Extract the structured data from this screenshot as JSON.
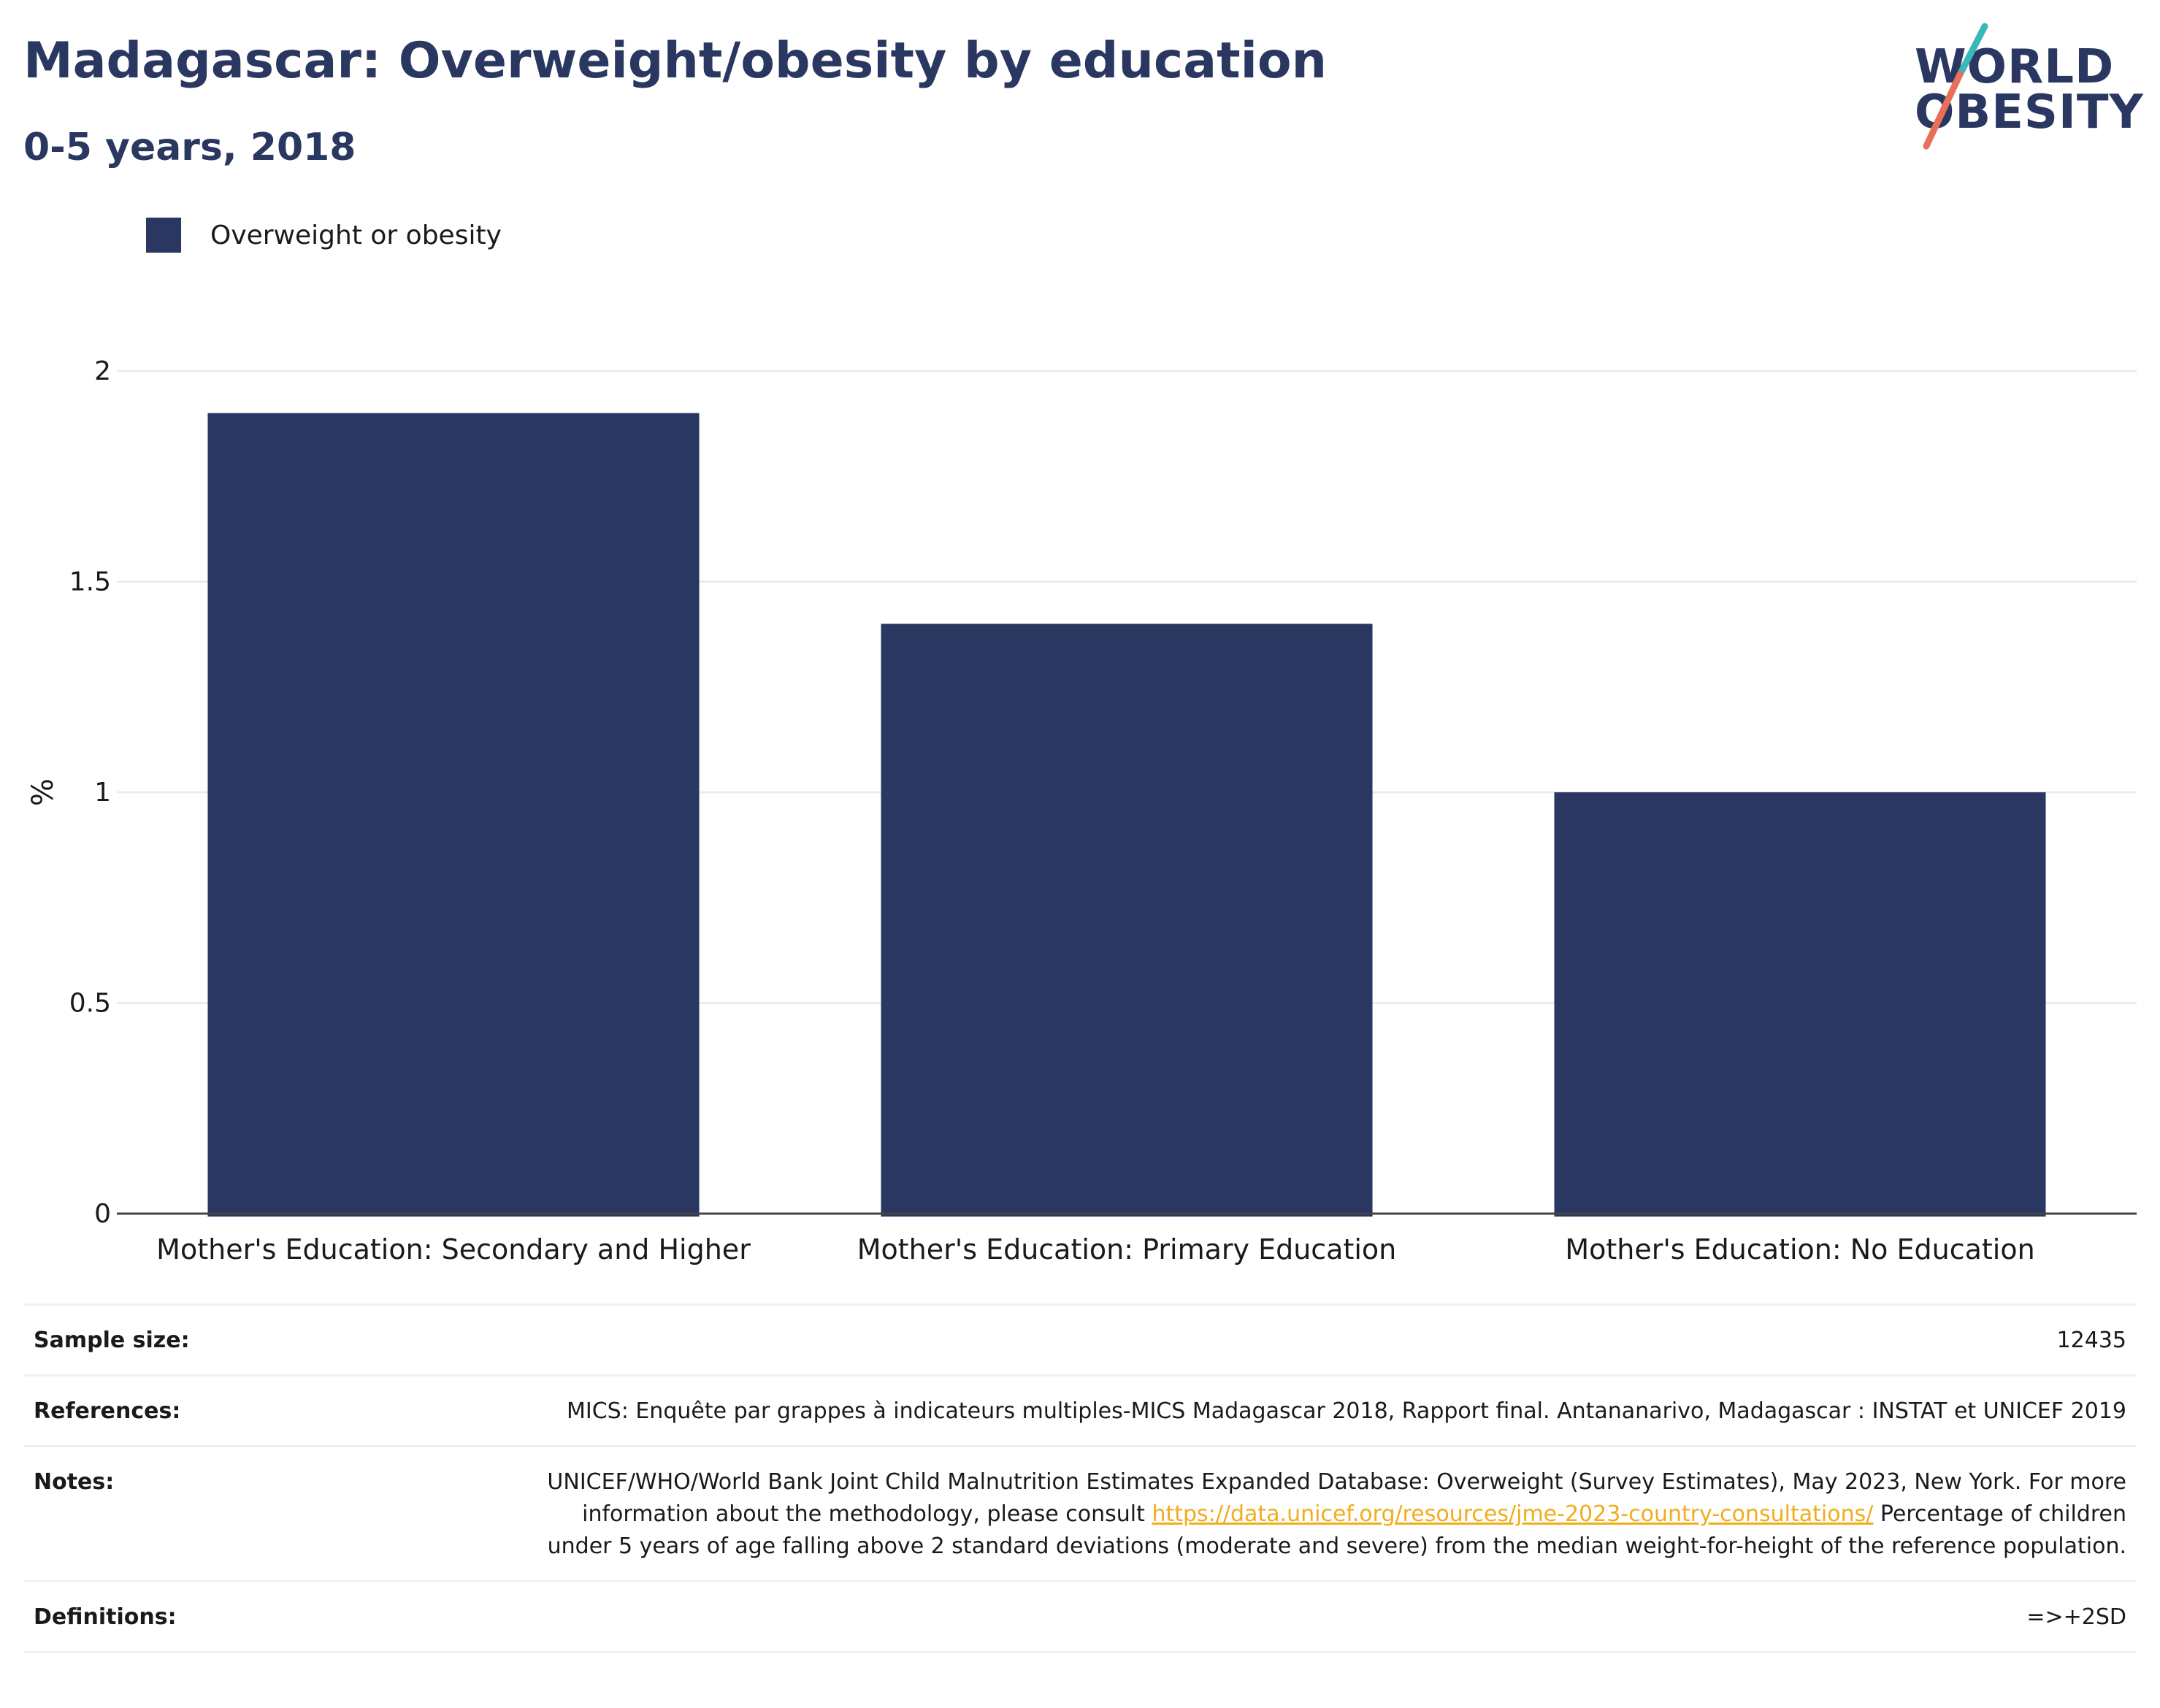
{
  "header": {
    "title": "Madagascar: Overweight/obesity by education",
    "subtitle": "0-5 years, 2018"
  },
  "logo": {
    "line1": "WORLD",
    "line2": "OBESITY",
    "colors": {
      "text": "#2a3761",
      "slash_top": "#3ab8b8",
      "slash_bottom": "#e8705a"
    }
  },
  "legend": {
    "label": "Overweight or obesity",
    "color": "#2a3761"
  },
  "chart_data": {
    "type": "bar",
    "categories": [
      "Mother's Education: Secondary and Higher",
      "Mother's Education: Primary Education",
      "Mother's Education: No Education"
    ],
    "series": [
      {
        "name": "Overweight or obesity",
        "values": [
          1.9,
          1.4,
          1.0
        ],
        "color": "#2a3761"
      }
    ],
    "ylabel": "%",
    "ylim": [
      0,
      2
    ],
    "yticks": [
      0,
      0.5,
      1,
      1.5,
      2
    ],
    "ytick_labels": [
      "0",
      "0.5",
      "1",
      "1.5",
      "2"
    ],
    "grid": true,
    "legend_position": "top-left"
  },
  "info": {
    "sample_size": {
      "label": "Sample size:",
      "value": "12435"
    },
    "references": {
      "label": "References:",
      "value": "MICS: Enquête par grappes à indicateurs multiples-MICS Madagascar 2018, Rapport final. Antananarivo, Madagascar : INSTAT et UNICEF 2019"
    },
    "notes": {
      "label": "Notes:",
      "text_before": "UNICEF/WHO/World Bank Joint Child Malnutrition Estimates Expanded Database: Overweight (Survey Estimates), May 2023, New York. For more information about the methodology, please consult ",
      "link": "https://data.unicef.org/resources/jme-2023-country-consultations/",
      "text_after": " Percentage of children under 5 years of age falling above 2 standard deviations (moderate and severe) from the median weight-for-height of the reference population."
    },
    "definitions": {
      "label": "Definitions:",
      "value": "=>+2SD"
    }
  }
}
